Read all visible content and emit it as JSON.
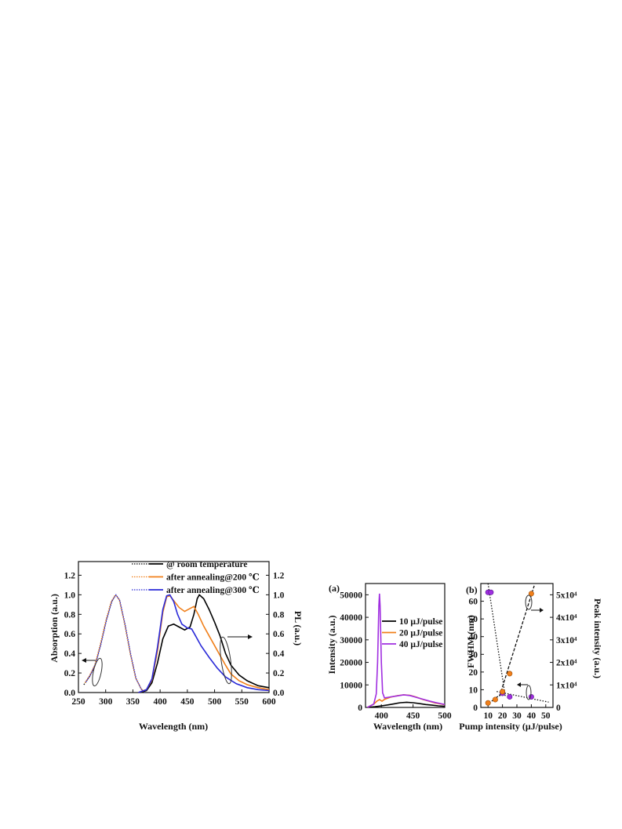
{
  "chart_data": [
    {
      "type": "line",
      "xlabel": "Wavelength (nm)",
      "ylabel": "Absorption (a.u.)",
      "ylabel_right": "PL (a.u.)",
      "xlim": [
        250,
        600
      ],
      "ylim": [
        0,
        1.34
      ],
      "x_ticks": [
        "250",
        "300",
        "350",
        "400",
        "450",
        "500",
        "550",
        "600"
      ],
      "y_ticks": [
        "0.0",
        "0.2",
        "0.4",
        "0.6",
        "0.8",
        "1.0",
        "1.2"
      ],
      "y_ticks_right": [
        "0.0",
        "0.2",
        "0.4",
        "0.6",
        "0.8",
        "1.0",
        "1.2"
      ],
      "legend_position": "top-right",
      "series": [
        {
          "name": "@ room temperature",
          "kind": "absorption",
          "style": "dotted",
          "color": "#000000",
          "points": [
            [
              260,
              0.08
            ],
            [
              270,
              0.16
            ],
            [
              280,
              0.27
            ],
            [
              290,
              0.48
            ],
            [
              300,
              0.72
            ],
            [
              310,
              0.92
            ],
            [
              318,
              1.0
            ],
            [
              325,
              0.95
            ],
            [
              335,
              0.7
            ],
            [
              345,
              0.4
            ],
            [
              355,
              0.15
            ],
            [
              365,
              0.04
            ],
            [
              372,
              0.0
            ]
          ]
        },
        {
          "name": "after annealing@200 ℃",
          "kind": "absorption",
          "style": "dotted",
          "color": "#f07f1a",
          "points": [
            [
              262,
              0.1
            ],
            [
              270,
              0.17
            ],
            [
              280,
              0.28
            ],
            [
              290,
              0.49
            ],
            [
              300,
              0.73
            ],
            [
              310,
              0.93
            ],
            [
              318,
              1.0
            ],
            [
              325,
              0.95
            ],
            [
              335,
              0.7
            ],
            [
              345,
              0.4
            ],
            [
              355,
              0.15
            ],
            [
              365,
              0.04
            ],
            [
              372,
              0.0
            ]
          ]
        },
        {
          "name": "after annealing@300 ℃",
          "kind": "absorption",
          "style": "dotted",
          "color": "#2a2ad8",
          "points": [
            [
              264,
              0.11
            ],
            [
              272,
              0.18
            ],
            [
              282,
              0.3
            ],
            [
              292,
              0.51
            ],
            [
              302,
              0.75
            ],
            [
              312,
              0.94
            ],
            [
              319,
              1.0
            ],
            [
              326,
              0.94
            ],
            [
              336,
              0.69
            ],
            [
              346,
              0.39
            ],
            [
              356,
              0.14
            ],
            [
              366,
              0.03
            ],
            [
              372,
              0.0
            ]
          ]
        },
        {
          "name": "@ room temperature",
          "kind": "PL",
          "style": "solid",
          "color": "#000000",
          "points": [
            [
              362,
              0.0
            ],
            [
              375,
              0.02
            ],
            [
              385,
              0.1
            ],
            [
              395,
              0.3
            ],
            [
              405,
              0.55
            ],
            [
              415,
              0.68
            ],
            [
              425,
              0.7
            ],
            [
              435,
              0.67
            ],
            [
              445,
              0.64
            ],
            [
              455,
              0.67
            ],
            [
              462,
              0.8
            ],
            [
              468,
              0.96
            ],
            [
              472,
              1.0
            ],
            [
              480,
              0.96
            ],
            [
              490,
              0.85
            ],
            [
              500,
              0.72
            ],
            [
              510,
              0.58
            ],
            [
              520,
              0.4
            ],
            [
              530,
              0.28
            ],
            [
              545,
              0.18
            ],
            [
              560,
              0.12
            ],
            [
              580,
              0.07
            ],
            [
              600,
              0.05
            ]
          ]
        },
        {
          "name": "after annealing@200 ℃",
          "kind": "PL",
          "style": "solid",
          "color": "#f07f1a",
          "points": [
            [
              360,
              0.0
            ],
            [
              375,
              0.03
            ],
            [
              385,
              0.13
            ],
            [
              395,
              0.42
            ],
            [
              405,
              0.82
            ],
            [
              412,
              0.98
            ],
            [
              418,
              0.99
            ],
            [
              425,
              0.94
            ],
            [
              435,
              0.87
            ],
            [
              445,
              0.83
            ],
            [
              455,
              0.86
            ],
            [
              462,
              0.88
            ],
            [
              470,
              0.8
            ],
            [
              480,
              0.68
            ],
            [
              490,
              0.58
            ],
            [
              500,
              0.48
            ],
            [
              510,
              0.38
            ],
            [
              520,
              0.28
            ],
            [
              530,
              0.19
            ],
            [
              545,
              0.12
            ],
            [
              560,
              0.08
            ],
            [
              580,
              0.05
            ],
            [
              600,
              0.03
            ]
          ]
        },
        {
          "name": "after annealing@300 ℃",
          "kind": "PL",
          "style": "solid",
          "color": "#2a2ad8",
          "points": [
            [
              360,
              0.0
            ],
            [
              375,
              0.03
            ],
            [
              385,
              0.14
            ],
            [
              395,
              0.46
            ],
            [
              405,
              0.85
            ],
            [
              412,
              0.99
            ],
            [
              418,
              1.0
            ],
            [
              425,
              0.93
            ],
            [
              432,
              0.8
            ],
            [
              440,
              0.7
            ],
            [
              450,
              0.66
            ],
            [
              458,
              0.65
            ],
            [
              465,
              0.58
            ],
            [
              475,
              0.48
            ],
            [
              490,
              0.36
            ],
            [
              505,
              0.25
            ],
            [
              520,
              0.16
            ],
            [
              540,
              0.09
            ],
            [
              560,
              0.05
            ],
            [
              580,
              0.03
            ],
            [
              600,
              0.02
            ]
          ]
        }
      ]
    },
    {
      "type": "line",
      "panel_label": "(a)",
      "xlabel": "Wavelength (nm)",
      "ylabel": "Intensity (a.u.)",
      "xlim": [
        375,
        500
      ],
      "ylim": [
        0,
        55000
      ],
      "x_ticks": [
        "400",
        "450",
        "500"
      ],
      "y_ticks": [
        "0",
        "10000",
        "20000",
        "30000",
        "40000",
        "50000"
      ],
      "legend_position": "middle-right",
      "series": [
        {
          "name": "10 μJ/pulse",
          "color": "#000000",
          "points": [
            [
              378,
              0
            ],
            [
              390,
              300
            ],
            [
              400,
              700
            ],
            [
              410,
              1100
            ],
            [
              420,
              1600
            ],
            [
              430,
              2100
            ],
            [
              440,
              2300
            ],
            [
              450,
              2100
            ],
            [
              460,
              1700
            ],
            [
              470,
              1300
            ],
            [
              480,
              1000
            ],
            [
              490,
              700
            ],
            [
              500,
              500
            ]
          ]
        },
        {
          "name": "20 μJ/pulse",
          "color": "#f07f1a",
          "points": [
            [
              378,
              0
            ],
            [
              388,
              1500
            ],
            [
              393,
              2800
            ],
            [
              397,
              3500
            ],
            [
              401,
              2800
            ],
            [
              405,
              3600
            ],
            [
              415,
              4600
            ],
            [
              425,
              5200
            ],
            [
              435,
              5600
            ],
            [
              445,
              5400
            ],
            [
              455,
              4600
            ],
            [
              465,
              3600
            ],
            [
              475,
              2800
            ],
            [
              485,
              2000
            ],
            [
              495,
              1500
            ],
            [
              500,
              1200
            ]
          ]
        },
        {
          "name": "40 μJ/pulse",
          "color": "#a02ee0",
          "points": [
            [
              378,
              0
            ],
            [
              388,
              1500
            ],
            [
              392,
              6000
            ],
            [
              394,
              20000
            ],
            [
              396,
              45000
            ],
            [
              397,
              50500
            ],
            [
              398,
              45000
            ],
            [
              400,
              20000
            ],
            [
              402,
              6500
            ],
            [
              405,
              4200
            ],
            [
              415,
              4700
            ],
            [
              425,
              5100
            ],
            [
              435,
              5600
            ],
            [
              445,
              5300
            ],
            [
              455,
              4500
            ],
            [
              465,
              3700
            ],
            [
              475,
              2900
            ],
            [
              485,
              2200
            ],
            [
              495,
              1600
            ],
            [
              500,
              1300
            ]
          ]
        }
      ]
    },
    {
      "type": "scatter",
      "panel_label": "(b)",
      "xlabel": "Pump intensity (μJ/pulse)",
      "ylabel": "FWHM (nm)",
      "ylabel_right": "Peak intensity (a.u.)",
      "xlim": [
        5,
        55
      ],
      "ylim": [
        0,
        70
      ],
      "ylim_right": [
        0,
        55000
      ],
      "x_ticks": [
        "10",
        "20",
        "30",
        "40",
        "50"
      ],
      "y_ticks": [
        "0",
        "10",
        "20",
        "30",
        "40",
        "50",
        "60"
      ],
      "y_ticks_right": [
        "0",
        "1x10⁴",
        "2x10⁴",
        "3x10⁴",
        "4x10⁴",
        "5x10⁴"
      ],
      "fwhm_points": [
        [
          10,
          65
        ],
        [
          12,
          65
        ],
        [
          20,
          8
        ],
        [
          25,
          6
        ],
        [
          40,
          6
        ]
      ],
      "peak_points": [
        [
          10,
          2000
        ],
        [
          15,
          3500
        ],
        [
          20,
          7000
        ],
        [
          25,
          15000
        ],
        [
          40,
          50500
        ]
      ],
      "fwhm_fit_lines": [
        [
          [
            10,
            70
          ],
          [
            22,
            6
          ]
        ],
        [
          [
            16,
            9
          ],
          [
            52,
            3
          ]
        ]
      ],
      "peak_fit_lines": [
        [
          [
            10,
            1500
          ],
          [
            20,
            6500
          ]
        ],
        [
          [
            18,
            5000
          ],
          [
            42,
            54000
          ]
        ]
      ]
    }
  ]
}
